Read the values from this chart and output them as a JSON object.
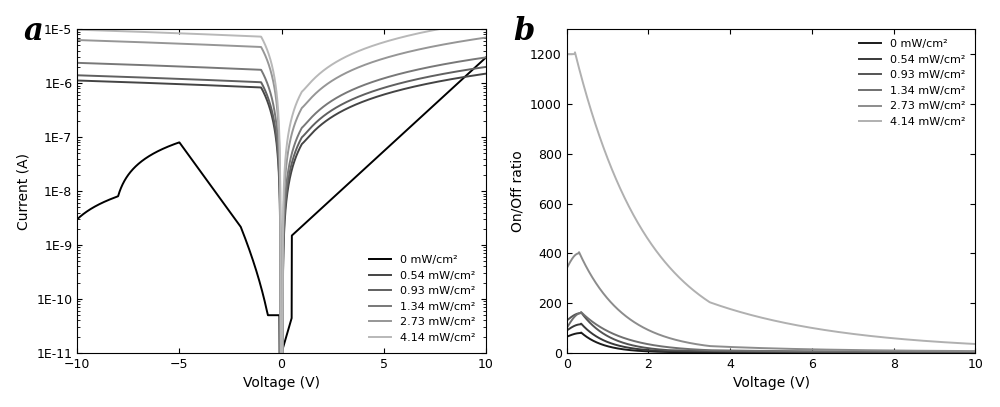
{
  "labels": [
    "0 mW/cm²",
    "0.54 mW/cm²",
    "0.93 mW/cm²",
    "1.34 mW/cm²",
    "2.73 mW/cm²",
    "4.14 mW/cm²"
  ],
  "colors_a": [
    "#000000",
    "#444444",
    "#606060",
    "#787878",
    "#969696",
    "#b8b8b8"
  ],
  "colors_b": [
    "#1a1a1a",
    "#383838",
    "#545454",
    "#707070",
    "#8c8c8c",
    "#b0b0b0"
  ],
  "panel_a_label": "a",
  "panel_b_label": "b",
  "xlabel_a": "Voltage (V)",
  "ylabel_a": "Current (A)",
  "xlabel_b": "Voltage (V)",
  "ylabel_b": "On/Off ratio",
  "xlim_a": [
    -10,
    10
  ],
  "ylim_a_exp_min": -11,
  "ylim_a_exp_max": -5,
  "xlim_b": [
    0,
    10
  ],
  "ylim_b": [
    0,
    1300
  ],
  "xticks_b": [
    0,
    2,
    4,
    6,
    8,
    10
  ],
  "yticks_b": [
    0,
    200,
    400,
    600,
    800,
    1000,
    1200
  ]
}
